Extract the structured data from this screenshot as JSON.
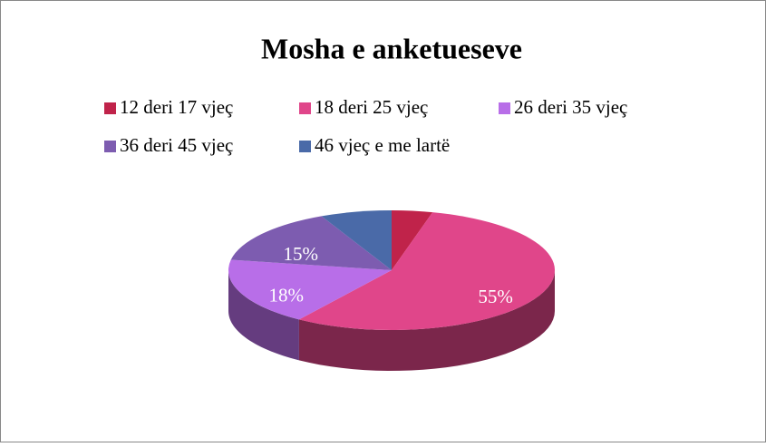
{
  "chart_data": {
    "type": "pie",
    "title": "Mosha e anketueseve",
    "categories": [
      "12 deri 17 vjeç",
      "18 deri 25 vjeç",
      "26 deri 35 vjeç",
      "36 deri 45 vjeç",
      "46 vjeç e me lartë"
    ],
    "values": [
      4,
      55,
      18,
      15,
      7
    ],
    "value_labels": [
      null,
      "55%",
      "18%",
      "15%",
      null
    ],
    "colors": [
      "#c0234a",
      "#e0468a",
      "#b86ee8",
      "#7d5cb0",
      "#4a6aa8"
    ],
    "legend": "top"
  }
}
